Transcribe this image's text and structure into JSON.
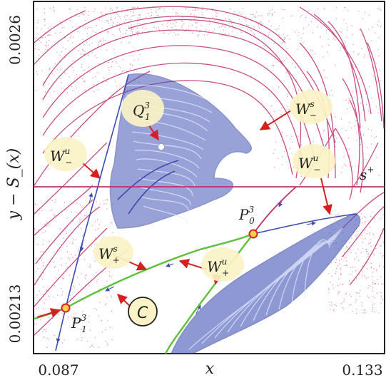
{
  "figure": {
    "x_axis": {
      "label": "x",
      "min_label": "0.087",
      "max_label": "0.133"
    },
    "y_axis": {
      "label": "y − S_(x)",
      "min_label": "0.00213",
      "max_label": "0.0026"
    }
  },
  "annotations": {
    "Q13": {
      "main": "Q",
      "sup": "3",
      "sub": "1"
    },
    "P03": {
      "main": "P",
      "sup": "3",
      "sub": "0"
    },
    "P13": {
      "main": "P",
      "sup": "3",
      "sub": "1"
    },
    "Wu_minus_left": {
      "main": "W",
      "sup": "u",
      "sub": "−"
    },
    "Ws_minus_right": {
      "main": "W",
      "sup": "s",
      "sub": "−"
    },
    "Wu_minus_right": {
      "main": "W",
      "sup": "u",
      "sub": "−"
    },
    "Ws_plus": {
      "main": "W",
      "sup": "s",
      "sub": "+"
    },
    "Wu_plus": {
      "main": "W",
      "sup": "u",
      "sub": "+"
    },
    "s_plus": {
      "main": "s",
      "sup": "+"
    },
    "curve_C": {
      "main": "C"
    }
  },
  "colors": {
    "stable_manifold": "#c0306e",
    "unstable_manifold": "#3b4bb0",
    "curve_c": "#5ec13a",
    "arrow": "#d62020",
    "fixed_point_fill": "#f7d34a",
    "fixed_point_edge": "#e02020",
    "bubble": "#fbf3c6"
  }
}
